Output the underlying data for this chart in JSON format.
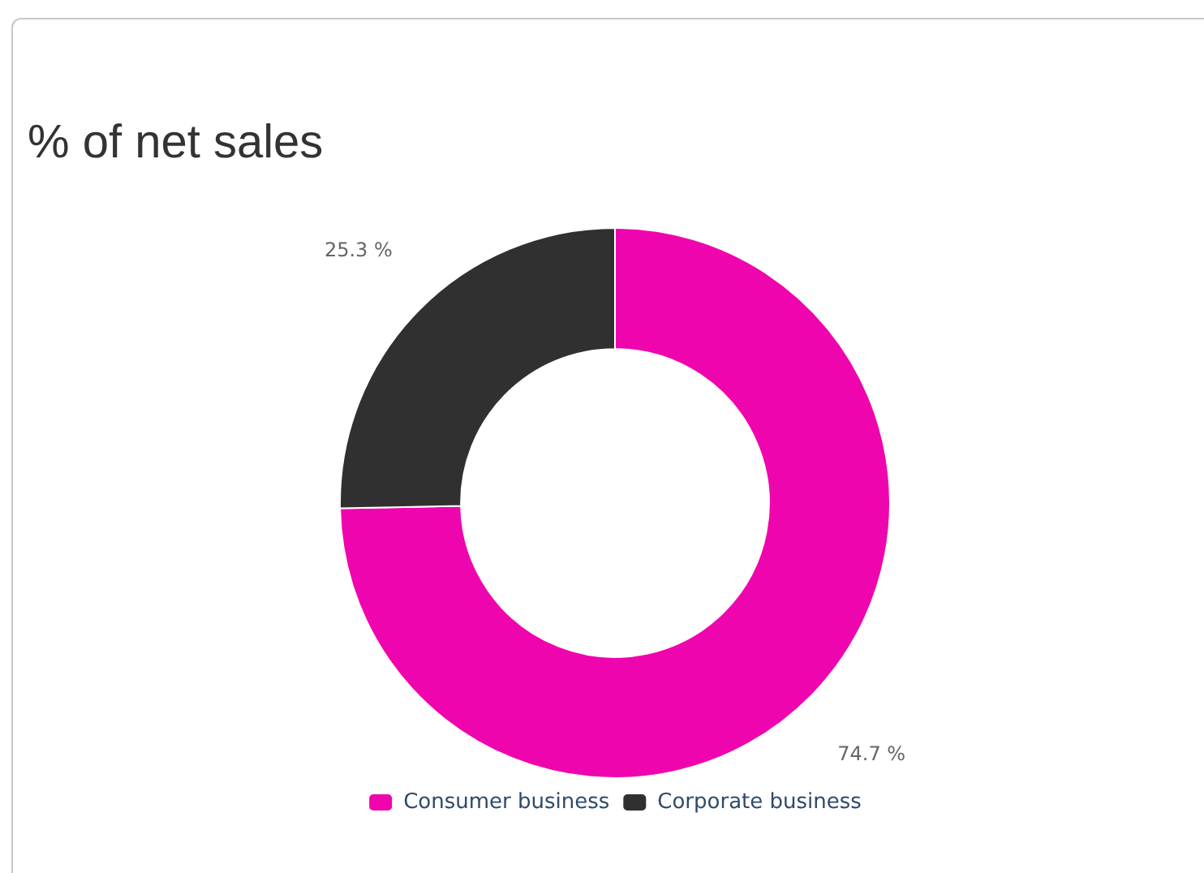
{
  "chart_data": {
    "type": "donut",
    "title": "% of net sales",
    "categories": [
      "Consumer business",
      "Corporate business"
    ],
    "values": [
      74.7,
      25.3
    ],
    "colors": [
      "#ef05ae",
      "#303030"
    ],
    "value_labels": [
      "74.7 %",
      "25.3 %"
    ],
    "legend": "bottom"
  }
}
